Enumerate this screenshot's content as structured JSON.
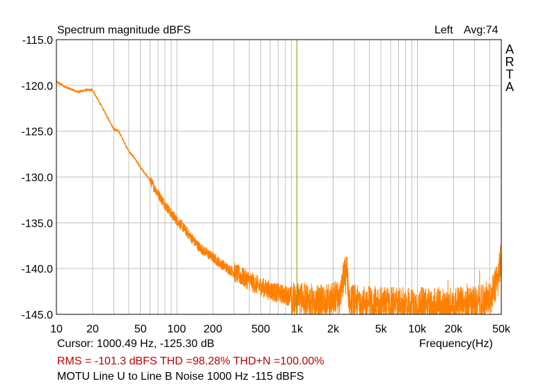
{
  "header": {
    "title": "Spectrum magnitude dBFS",
    "channel": "Left",
    "avg": "Avg:74",
    "brand_letters": [
      "A",
      "R",
      "T",
      "A"
    ]
  },
  "footer": {
    "cursor": "Cursor: 1000.49 Hz, -125.30 dB",
    "xlabel": "Frequency(Hz)",
    "stats": "RMS = -101.3 dBFS   THD =98.28%   THD+N =100.00%",
    "description": "MOTU Line U to Line B Noise 1000 Hz -115 dBFS"
  },
  "colors": {
    "trace": "#ff7f00",
    "cursor": "#8a9a00",
    "grid": "#c0c0c0",
    "stats": "#c00000"
  },
  "chart_data": {
    "type": "line",
    "title": "Spectrum magnitude dBFS",
    "xlabel": "Frequency(Hz)",
    "ylabel": "dBFS",
    "xscale": "log",
    "xlim": [
      10,
      50000
    ],
    "ylim": [
      -145,
      -115
    ],
    "grid": true,
    "x_ticks": [
      {
        "value": 10,
        "label": "10"
      },
      {
        "value": 20,
        "label": "20"
      },
      {
        "value": 50,
        "label": "50"
      },
      {
        "value": 100,
        "label": "100"
      },
      {
        "value": 200,
        "label": "200"
      },
      {
        "value": 500,
        "label": "500"
      },
      {
        "value": 1000,
        "label": "1k"
      },
      {
        "value": 2000,
        "label": "2k"
      },
      {
        "value": 5000,
        "label": "5k"
      },
      {
        "value": 10000,
        "label": "10k"
      },
      {
        "value": 20000,
        "label": "20k"
      },
      {
        "value": 50000,
        "label": "50k"
      }
    ],
    "y_ticks": [
      {
        "value": -115,
        "label": "-115.0"
      },
      {
        "value": -120,
        "label": "-120.0"
      },
      {
        "value": -125,
        "label": "-125.0"
      },
      {
        "value": -130,
        "label": "-130.0"
      },
      {
        "value": -135,
        "label": "-135.0"
      },
      {
        "value": -140,
        "label": "-140.0"
      },
      {
        "value": -145,
        "label": "-145.0"
      }
    ],
    "cursor_hz": 1000.49,
    "series": [
      {
        "name": "Left",
        "x": [
          10,
          12,
          15,
          18,
          20,
          22,
          25,
          28,
          30,
          33,
          36,
          40,
          45,
          50,
          56,
          63,
          70,
          80,
          90,
          100,
          115,
          130,
          150,
          170,
          200,
          230,
          260,
          300,
          350,
          400,
          450,
          500,
          600,
          700,
          800,
          900,
          1000,
          1200,
          1400,
          1700,
          2000,
          2300,
          2500,
          2600,
          2700,
          3000,
          3500,
          4000,
          5000,
          6000,
          7000,
          8000,
          10000,
          12000,
          15000,
          18000,
          20000,
          25000,
          30000,
          35000,
          40000,
          43000,
          46000,
          48000,
          50000
        ],
        "values": [
          -119.6,
          -120.2,
          -120.7,
          -120.5,
          -120.5,
          -121.5,
          -122.8,
          -124.0,
          -124.8,
          -125.0,
          -126.0,
          -127.2,
          -128.0,
          -129.0,
          -129.8,
          -130.8,
          -131.8,
          -133.0,
          -134.0,
          -134.7,
          -135.6,
          -136.5,
          -137.5,
          -138.1,
          -138.8,
          -139.4,
          -139.9,
          -140.4,
          -140.9,
          -141.3,
          -141.7,
          -142.0,
          -142.4,
          -142.7,
          -142.9,
          -143.0,
          -143.2,
          -143.3,
          -143.4,
          -143.4,
          -143.3,
          -142.5,
          -140.5,
          -140.0,
          -143.3,
          -143.5,
          -143.5,
          -143.6,
          -143.7,
          -143.7,
          -143.8,
          -143.8,
          -143.8,
          -143.8,
          -143.8,
          -143.8,
          -143.8,
          -143.7,
          -143.6,
          -143.4,
          -143.0,
          -142.3,
          -141.0,
          -139.8,
          -138.5
        ]
      }
    ]
  }
}
